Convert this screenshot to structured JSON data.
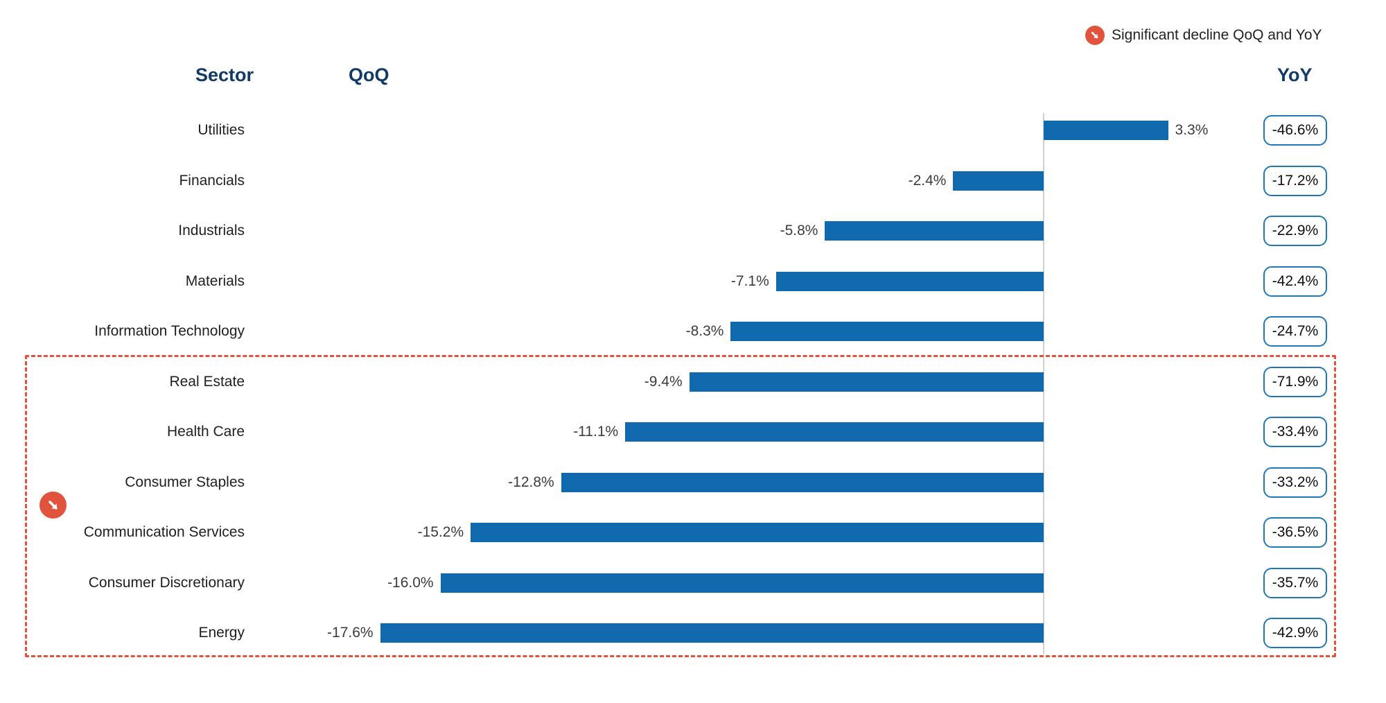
{
  "legend": {
    "label": "Significant decline QoQ and YoY",
    "icon": "decline-arrow-icon"
  },
  "headers": {
    "sector": "Sector",
    "qoq": "QoQ",
    "yoy": "YoY"
  },
  "colors": {
    "bar_blue": "#1169ae",
    "yoy_box_border": "#1f78b6",
    "header_navy": "#123a66",
    "annotation_red": "#e2533e",
    "baseline_gray": "#d2d2d2"
  },
  "chart_data": {
    "type": "bar",
    "orientation": "horizontal",
    "title": "",
    "columns": [
      "Sector",
      "QoQ",
      "YoY"
    ],
    "categories": [
      "Utilities",
      "Financials",
      "Industrials",
      "Materials",
      "Information Technology",
      "Real Estate",
      "Health Care",
      "Consumer Staples",
      "Communication Services",
      "Consumer Discretionary",
      "Energy"
    ],
    "series": [
      {
        "name": "QoQ",
        "unit": "%",
        "values": [
          3.3,
          -2.4,
          -5.8,
          -7.1,
          -8.3,
          -9.4,
          -11.1,
          -12.8,
          -15.2,
          -16.0,
          -17.6
        ],
        "labels": [
          "3.3%",
          "-2.4%",
          "-5.8%",
          "-7.1%",
          "-8.3%",
          "-9.4%",
          "-11.1%",
          "-12.8%",
          "-15.2%",
          "-16.0%",
          "-17.6%"
        ]
      },
      {
        "name": "YoY",
        "unit": "%",
        "display": "boxed",
        "values": [
          -46.6,
          -17.2,
          -22.9,
          -42.4,
          -24.7,
          -71.9,
          -33.4,
          -33.2,
          -36.5,
          -35.7,
          -42.9
        ],
        "labels": [
          "-46.6%",
          "-17.2%",
          "-22.9%",
          "-42.4%",
          "-24.7%",
          "-71.9%",
          "-33.4%",
          "-33.2%",
          "-36.5%",
          "-35.7%",
          "-42.9%"
        ]
      }
    ],
    "highlighted_categories": [
      "Real Estate",
      "Health Care",
      "Consumer Staples",
      "Communication Services",
      "Consumer Discretionary",
      "Energy"
    ],
    "annotation": {
      "text": "Significant decline QoQ and YoY",
      "icon": "decline-arrow-icon"
    },
    "axis": {
      "zero_baseline": true,
      "xlim": [
        -18,
        4
      ],
      "grid": false,
      "legend_position": "top-right"
    }
  }
}
